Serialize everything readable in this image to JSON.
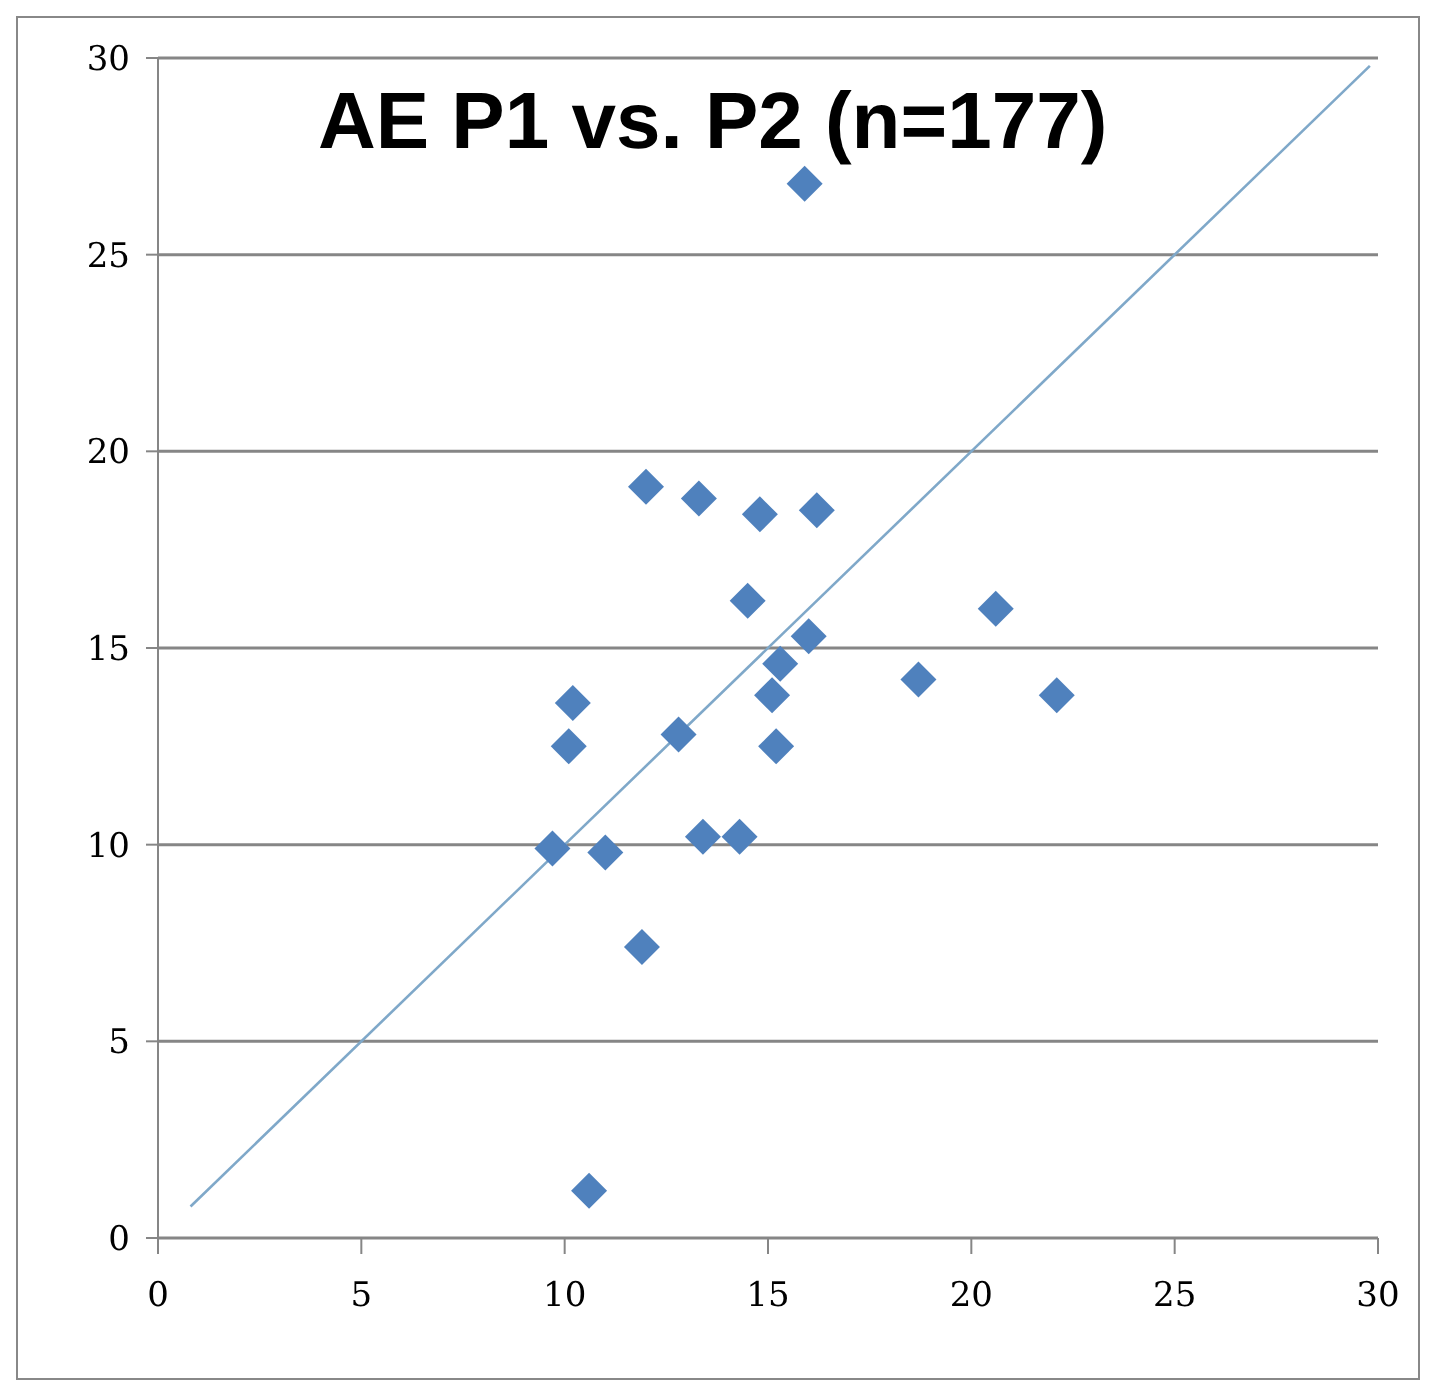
{
  "chart_data": {
    "type": "scatter",
    "title": "AE P1 vs. P2 (n=177)",
    "xlim": [
      0,
      30
    ],
    "xticks": [
      0,
      5,
      10,
      15,
      20,
      25,
      30
    ],
    "ylim": [
      0,
      30
    ],
    "yticks": [
      0,
      5,
      10,
      15,
      20,
      25,
      30
    ],
    "grid": "y",
    "series": [
      {
        "marker": "diamond",
        "color": "#4f81bd",
        "x": [
          15.9,
          12.0,
          13.3,
          14.8,
          16.2,
          14.5,
          16.0,
          15.3,
          15.1,
          15.2,
          10.2,
          10.1,
          12.8,
          9.7,
          11.0,
          13.4,
          14.3,
          11.9,
          10.6,
          20.6,
          18.7,
          22.1
        ],
        "values": [
          26.8,
          19.1,
          18.8,
          18.4,
          18.5,
          16.2,
          15.3,
          14.6,
          13.8,
          12.5,
          13.6,
          12.5,
          12.8,
          9.9,
          9.8,
          10.2,
          10.2,
          7.4,
          1.2,
          16.0,
          14.2,
          13.8
        ]
      },
      {
        "type": "line",
        "color": "#7fa8c9",
        "x": [
          0.8,
          29.8
        ],
        "values": [
          0.8,
          29.8
        ]
      }
    ]
  }
}
